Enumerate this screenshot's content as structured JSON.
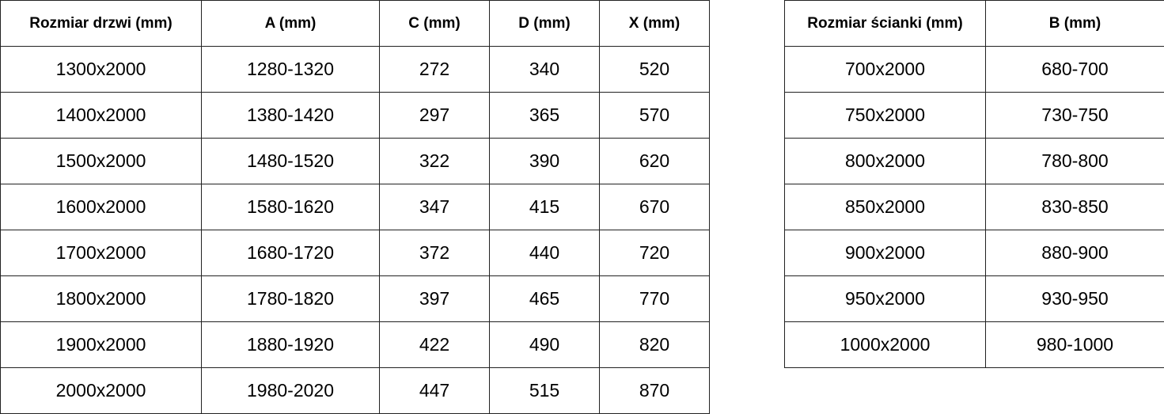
{
  "doors_table": {
    "headers": [
      "Rozmiar drzwi (mm)",
      "A (mm)",
      "C (mm)",
      "D (mm)",
      "X (mm)"
    ],
    "rows": [
      [
        "1300x2000",
        "1280-1320",
        "272",
        "340",
        "520"
      ],
      [
        "1400x2000",
        "1380-1420",
        "297",
        "365",
        "570"
      ],
      [
        "1500x2000",
        "1480-1520",
        "322",
        "390",
        "620"
      ],
      [
        "1600x2000",
        "1580-1620",
        "347",
        "415",
        "670"
      ],
      [
        "1700x2000",
        "1680-1720",
        "372",
        "440",
        "720"
      ],
      [
        "1800x2000",
        "1780-1820",
        "397",
        "465",
        "770"
      ],
      [
        "1900x2000",
        "1880-1920",
        "422",
        "490",
        "820"
      ],
      [
        "2000x2000",
        "1980-2020",
        "447",
        "515",
        "870"
      ]
    ]
  },
  "wall_table": {
    "headers": [
      "Rozmiar ścianki (mm)",
      "B (mm)"
    ],
    "rows": [
      [
        "700x2000",
        "680-700"
      ],
      [
        "750x2000",
        "730-750"
      ],
      [
        "800x2000",
        "780-800"
      ],
      [
        "850x2000",
        "830-850"
      ],
      [
        "900x2000",
        "880-900"
      ],
      [
        "950x2000",
        "930-950"
      ],
      [
        "1000x2000",
        "980-1000"
      ]
    ]
  }
}
